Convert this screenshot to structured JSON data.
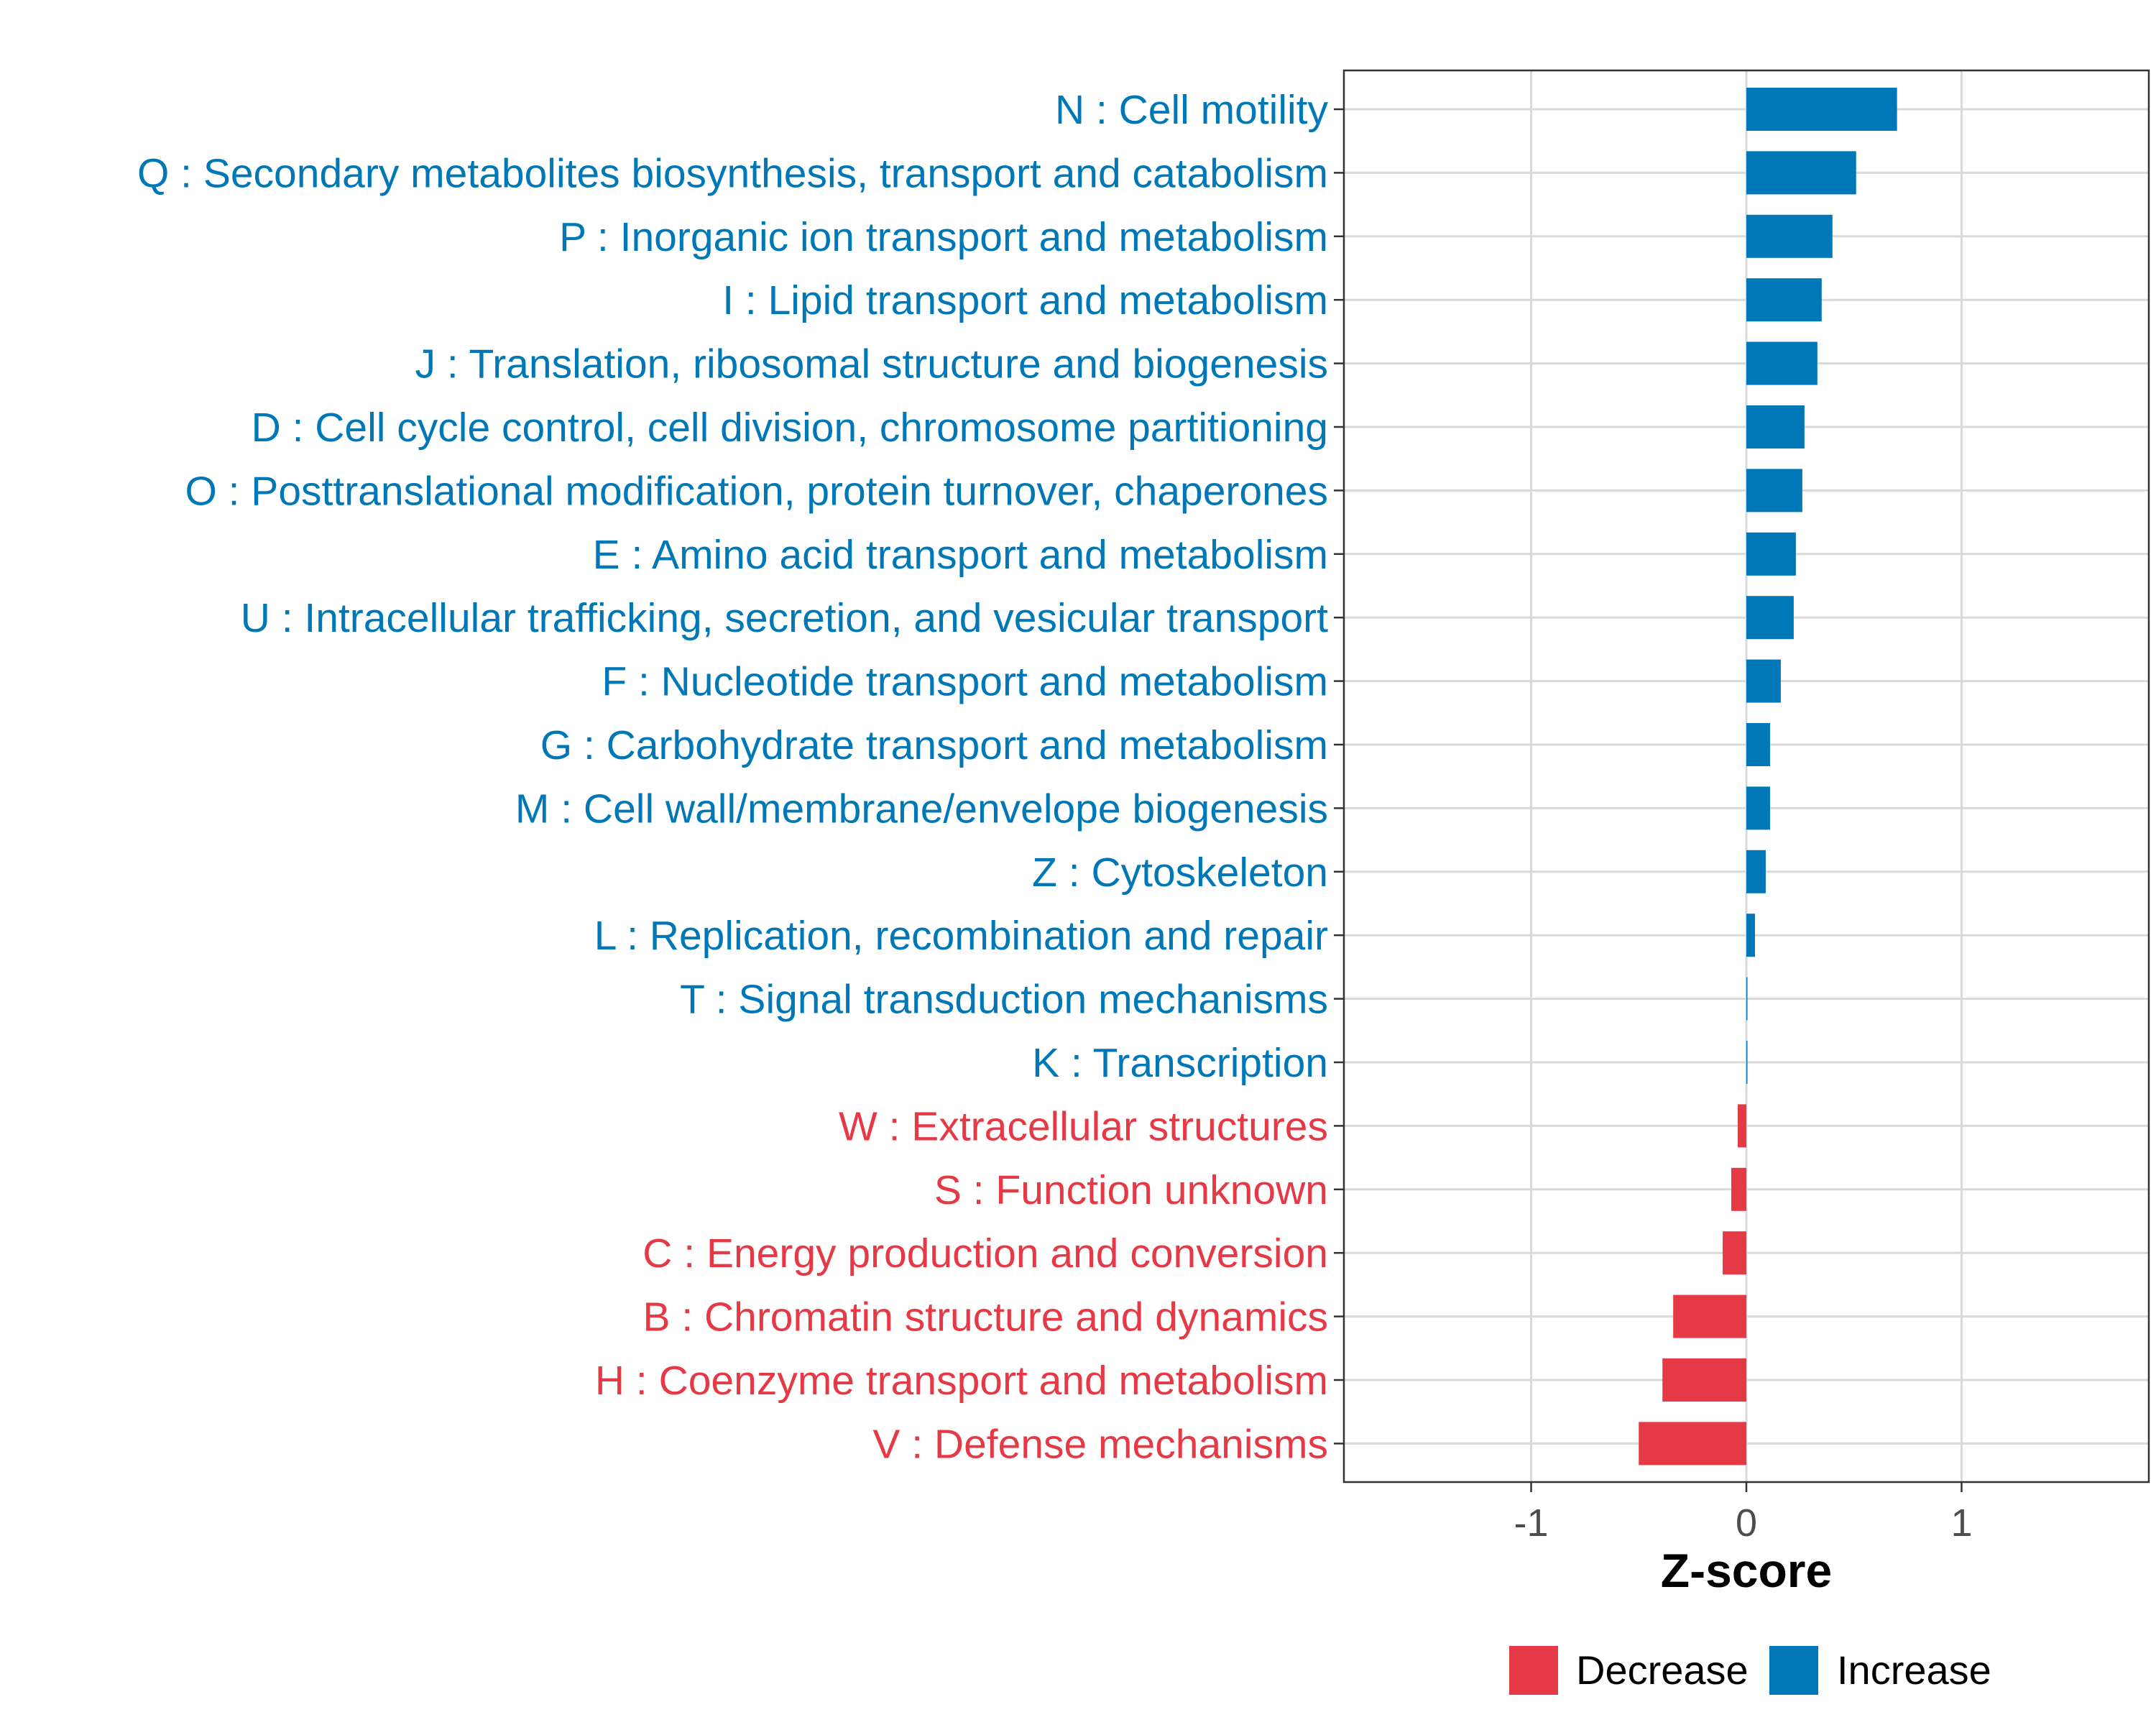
{
  "chart_data": {
    "type": "bar",
    "orientation": "horizontal",
    "title": "",
    "xlabel": "Z-score",
    "ylabel": "",
    "xlim": [
      -1.87,
      1.87
    ],
    "xticks": [
      -1,
      0,
      1
    ],
    "xtick_labels": [
      "-1",
      "0",
      "1"
    ],
    "grid": true,
    "colors": {
      "Decrease": "#E63946",
      "Increase": "#0077B6"
    },
    "legend": {
      "position": "bottom",
      "entries": [
        "Decrease",
        "Increase"
      ]
    },
    "categories": [
      "N : Cell motility",
      "Q : Secondary metabolites biosynthesis, transport and catabolism",
      "P : Inorganic ion transport and metabolism",
      "I : Lipid transport and metabolism",
      "J : Translation, ribosomal structure and biogenesis",
      "D : Cell cycle control, cell division, chromosome partitioning",
      "O : Posttranslational modification, protein turnover, chaperones",
      "E : Amino acid transport and metabolism",
      "U : Intracellular trafficking, secretion, and vesicular transport",
      "F : Nucleotide transport and metabolism",
      "G : Carbohydrate transport and metabolism",
      "M : Cell wall/membrane/envelope biogenesis",
      "Z : Cytoskeleton",
      "L : Replication, recombination and repair",
      "T : Signal transduction mechanisms",
      "K : Transcription",
      "W : Extracellular structures",
      "S : Function unknown",
      "C : Energy production and conversion",
      "B : Chromatin structure and dynamics",
      "H : Coenzyme transport and metabolism",
      "V : Defense mechanisms"
    ],
    "values": [
      0.7,
      0.51,
      0.4,
      0.35,
      0.33,
      0.27,
      0.26,
      0.23,
      0.22,
      0.16,
      0.11,
      0.11,
      0.09,
      0.04,
      0.005,
      0.005,
      -0.04,
      -0.07,
      -0.11,
      -0.34,
      -0.39,
      -0.5
    ],
    "groups": [
      "Increase",
      "Increase",
      "Increase",
      "Increase",
      "Increase",
      "Increase",
      "Increase",
      "Increase",
      "Increase",
      "Increase",
      "Increase",
      "Increase",
      "Increase",
      "Increase",
      "Increase",
      "Increase",
      "Decrease",
      "Decrease",
      "Decrease",
      "Decrease",
      "Decrease",
      "Decrease"
    ]
  }
}
